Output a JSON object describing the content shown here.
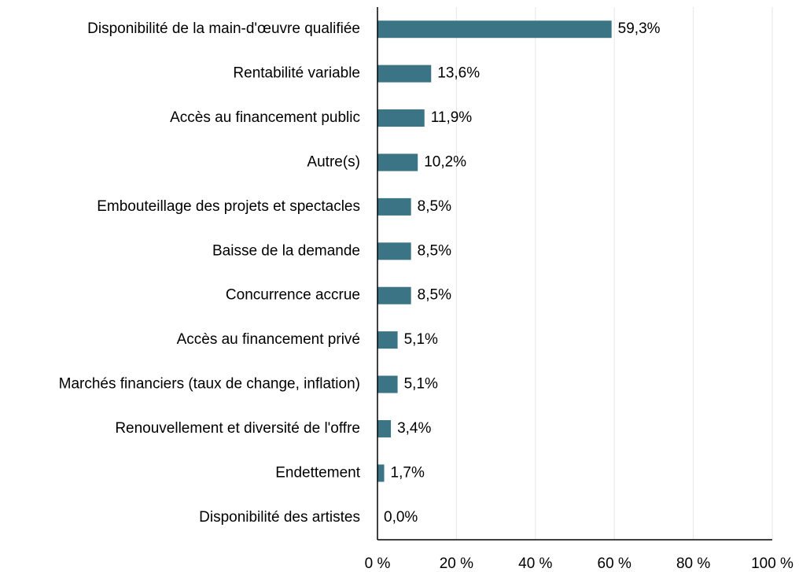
{
  "chart_data": {
    "type": "bar",
    "orientation": "horizontal",
    "categories": [
      "Disponibilité de la main-d'œuvre qualifiée",
      "Rentabilité variable",
      "Accès au financement public",
      "Autre(s)",
      "Embouteillage des projets et spectacles",
      "Baisse de la demande ",
      "Concurrence accrue ",
      "Accès au financement privé",
      "Marchés financiers (taux de change, inflation)",
      "Renouvellement et diversité de l'offre",
      "Endettement",
      "Disponibilité des artistes"
    ],
    "values": [
      59.3,
      13.6,
      11.9,
      10.2,
      8.5,
      8.5,
      8.5,
      5.1,
      5.1,
      3.4,
      1.7,
      0.0
    ],
    "value_labels": [
      "59,3%",
      "13,6%",
      "11,9%",
      "10,2%",
      "8,5%",
      "8,5%",
      "8,5%",
      "5,1%",
      "5,1%",
      "3,4%",
      "1,7%",
      "0,0%"
    ],
    "color": "#3b7585",
    "xlim": [
      0,
      100
    ],
    "xticks": [
      {
        "value": 0,
        "label": "0 %"
      },
      {
        "value": 20,
        "label": "20 %"
      },
      {
        "value": 40,
        "label": "40 %"
      },
      {
        "value": 60,
        "label": "60 %"
      },
      {
        "value": 80,
        "label": "80 %"
      },
      {
        "value": 100,
        "label": "100 %"
      }
    ],
    "grid": true
  }
}
